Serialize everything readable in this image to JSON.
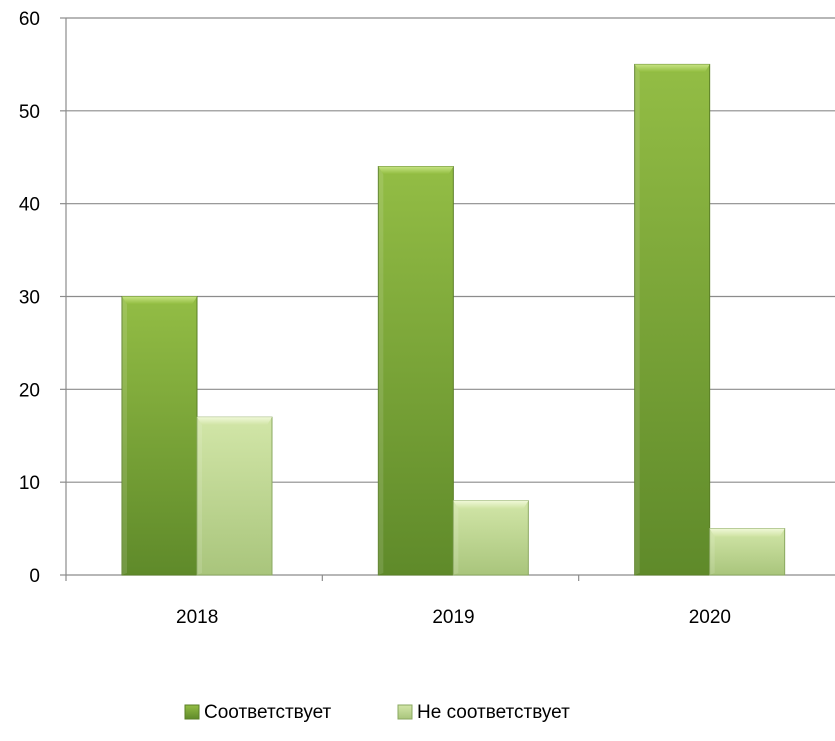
{
  "chart_data": {
    "type": "bar",
    "categories": [
      "2018",
      "2019",
      "2020"
    ],
    "series": [
      {
        "name": "Соответствует",
        "values": [
          30,
          44,
          55
        ],
        "color": "#8bb33e"
      },
      {
        "name": "Не соответствует",
        "values": [
          17,
          8,
          5
        ],
        "color": "#c3d99a"
      }
    ],
    "ylim": [
      0,
      60
    ],
    "yticks": [
      0,
      10,
      20,
      30,
      40,
      50,
      60
    ],
    "grid": true,
    "legend_position": "bottom",
    "title": "",
    "xlabel": "",
    "ylabel": ""
  }
}
